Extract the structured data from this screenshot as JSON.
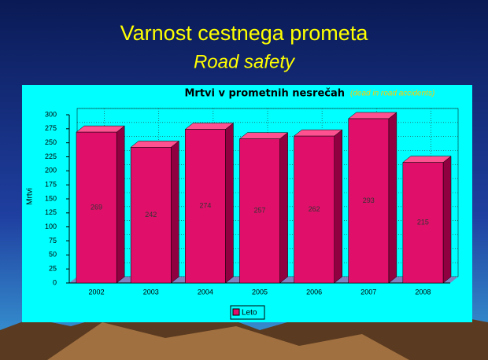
{
  "slide_title": "Varnost cestnega prometa",
  "slide_subtitle": "Road safety",
  "chart_data": {
    "type": "bar",
    "title": "Mrtvi v prometnih nesrečah",
    "subtitle": "(dead in road accidents)",
    "y_label": "Mrtvi",
    "categories": [
      "2002",
      "2003",
      "2004",
      "2005",
      "2006",
      "2007",
      "2008"
    ],
    "series": [
      {
        "name": "Leto",
        "color": "#e0106a",
        "values": [
          269,
          242,
          274,
          257,
          262,
          293,
          215
        ]
      }
    ],
    "ylim": [
      0,
      300
    ],
    "yticks": [
      0,
      25,
      50,
      75,
      100,
      125,
      150,
      175,
      200,
      225,
      250,
      275,
      300
    ],
    "grid": true
  }
}
